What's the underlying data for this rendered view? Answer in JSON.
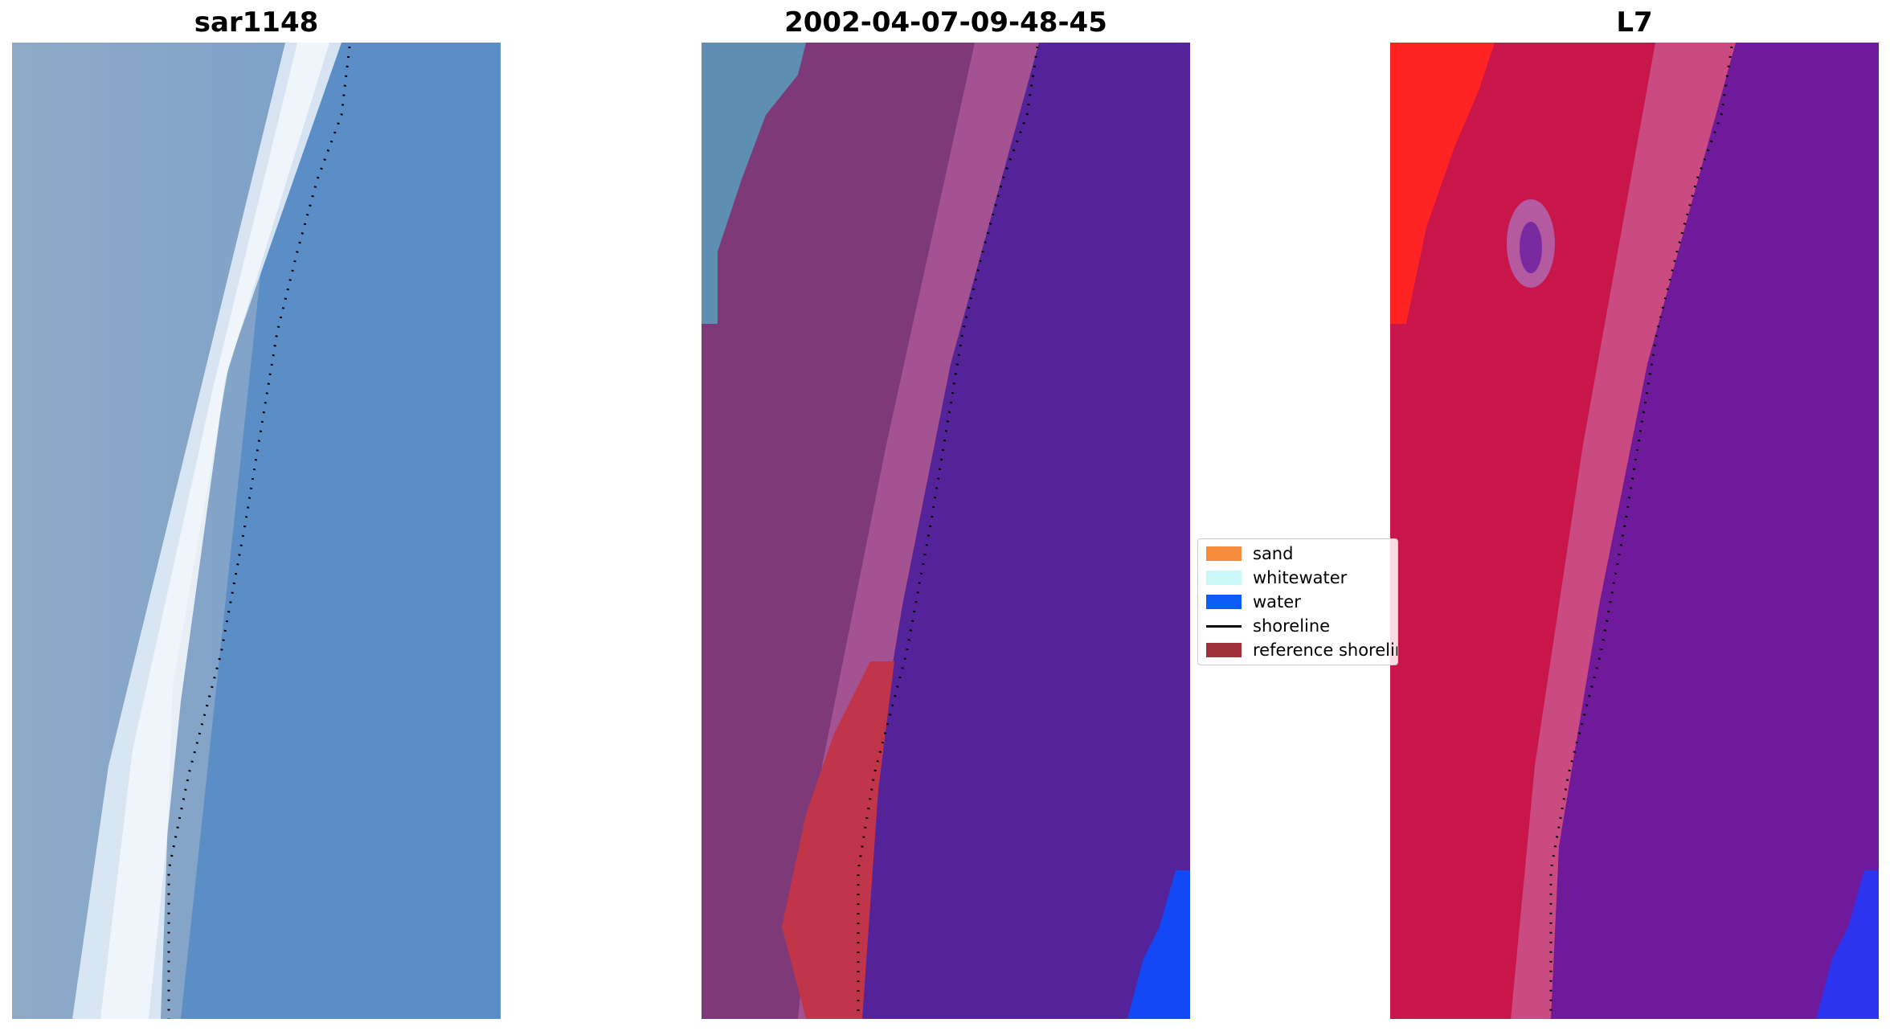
{
  "panels": [
    {
      "title": "sar1148"
    },
    {
      "title": "2002-04-07-09-48-45"
    },
    {
      "title": "L7"
    }
  ],
  "legend": {
    "items": [
      {
        "label": "sand",
        "color": "#f58b3c",
        "kind": "patch"
      },
      {
        "label": "whitewater",
        "color": "#ccf7f7",
        "kind": "patch"
      },
      {
        "label": "water",
        "color": "#0a5cf5",
        "kind": "patch"
      },
      {
        "label": "shoreline",
        "color": "#000000",
        "kind": "line"
      },
      {
        "label": "reference shoreline",
        "color": "#a0303a",
        "kind": "patch"
      }
    ]
  },
  "colors": {
    "rgb_sea": "#5b8fc4",
    "rgb_beach": "#e8eef6",
    "class_water": "#54239a",
    "class_sand_overlay": "#a64e8a",
    "class_land_overlay": "#7e3a78",
    "class_reference": "#c0354a",
    "class_open_water": "#1248f5",
    "l7_land": "#c8154a",
    "l7_water": "#6e1a9a",
    "l7_bright": "#ff2020"
  }
}
